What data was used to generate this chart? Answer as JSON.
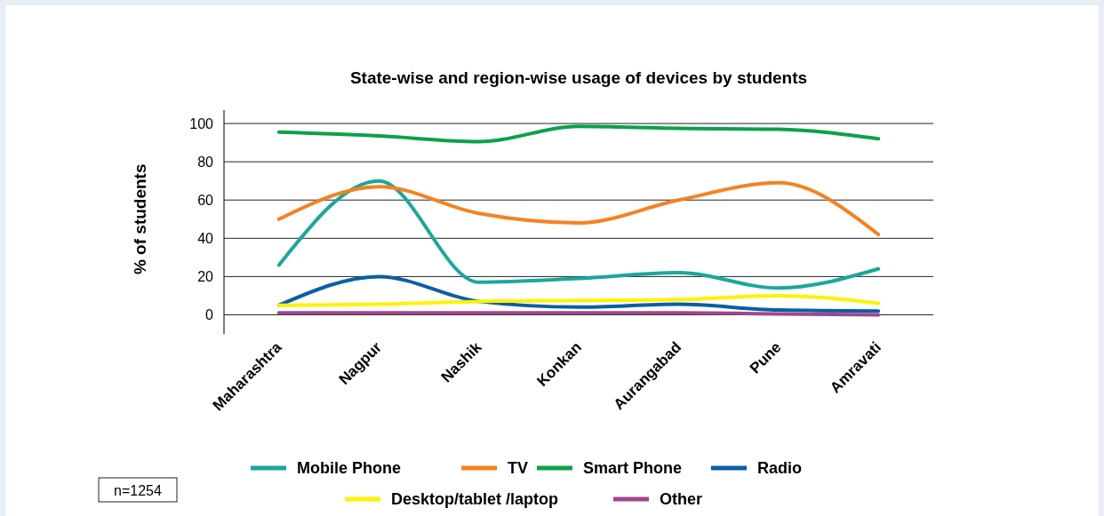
{
  "chart_data": {
    "type": "line",
    "title": "State-wise  and region-wise usage of devices by students",
    "ylabel": "% of students",
    "categories": [
      "Maharashtra",
      "Nagpur",
      "Nashik",
      "Konkan",
      "Aurangabad",
      "Pune",
      "Amravati"
    ],
    "series": [
      {
        "name": "Mobile Phone",
        "color": "#1aa89a",
        "values": [
          26,
          70,
          17,
          19,
          22,
          14,
          24
        ]
      },
      {
        "name": "TV",
        "color": "#f58220",
        "values": [
          50,
          67,
          53,
          48,
          60,
          69,
          42
        ]
      },
      {
        "name": "Smart Phone",
        "color": "#0aa24a",
        "values": [
          95.5,
          93.5,
          90.5,
          98.5,
          97.5,
          97,
          92
        ]
      },
      {
        "name": "Radio",
        "color": "#0a5ea8",
        "values": [
          5,
          20,
          7,
          4,
          5.5,
          2.5,
          2
        ]
      },
      {
        "name": "Desktop/tablet /laptop",
        "color": "#fff200",
        "values": [
          5,
          5.5,
          7,
          7.5,
          8,
          10,
          6
        ]
      },
      {
        "name": "Other",
        "color": "#a0468e",
        "values": [
          1,
          1,
          1,
          1,
          1,
          0.5,
          0
        ]
      }
    ],
    "ylim": [
      -10,
      107
    ],
    "yticks": [
      0,
      20,
      40,
      60,
      80,
      100
    ],
    "grid": "y",
    "legend": "bottom",
    "marker": "none",
    "line_style": "solid",
    "annotations": [
      "n=1254"
    ]
  }
}
